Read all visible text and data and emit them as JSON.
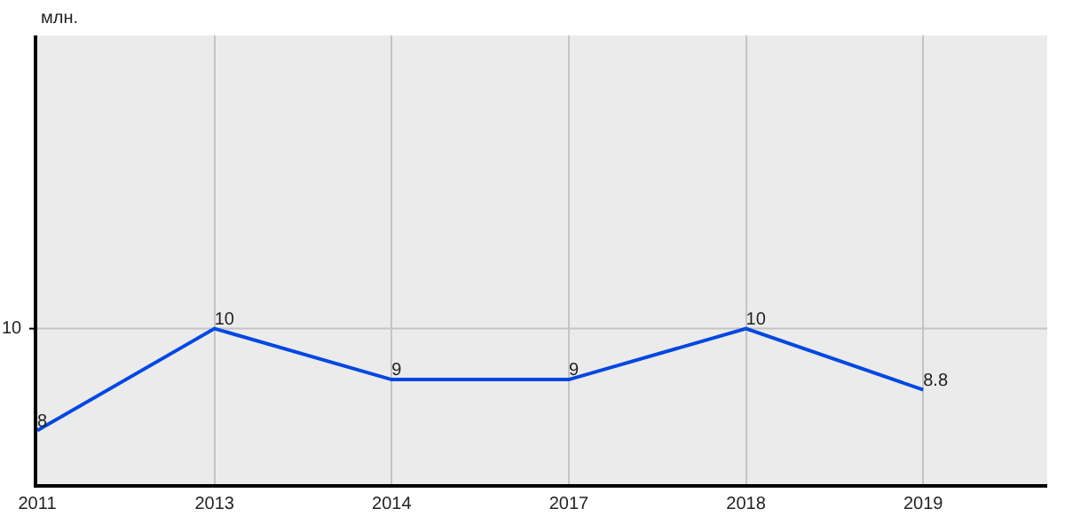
{
  "chart_data": {
    "type": "line",
    "ylabel": "млн.",
    "categories": [
      "2011",
      "2013",
      "2014",
      "2017",
      "2018",
      "2019"
    ],
    "series": [
      {
        "color": "#0047e0",
        "values": [
          8,
          10,
          9,
          9,
          10,
          8.8
        ]
      }
    ],
    "ylim": [
      6.95,
      15.75
    ],
    "ref_lines": [
      {
        "axis": "y",
        "value": 10,
        "label": "10",
        "color": "#c4c4c4"
      }
    ],
    "grid": "x",
    "data_labels": true,
    "marker": "none",
    "line_style": "solid"
  }
}
